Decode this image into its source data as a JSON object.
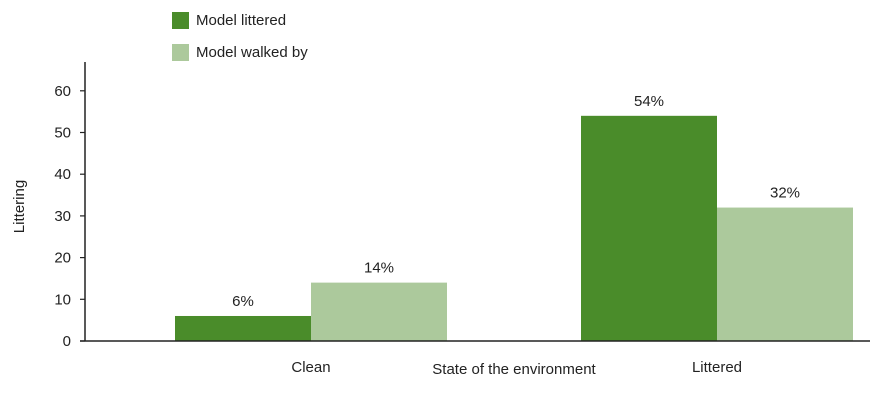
{
  "chart_data": {
    "type": "bar",
    "title": "",
    "xlabel": "State of the environment",
    "ylabel": "Littering",
    "categories": [
      "Clean",
      "Littered"
    ],
    "series": [
      {
        "name": "Model littered",
        "values": [
          6,
          54
        ],
        "labels": [
          "6%",
          "54%"
        ],
        "color": "#4a8c2a"
      },
      {
        "name": "Model walked by",
        "values": [
          14,
          32
        ],
        "labels": [
          "14%",
          "32%"
        ],
        "color": "#acc99c"
      }
    ],
    "ylim": [
      0,
      65
    ],
    "yticks": [
      0,
      10,
      20,
      30,
      40,
      50,
      60
    ],
    "legend": "top-left",
    "grid": false
  }
}
